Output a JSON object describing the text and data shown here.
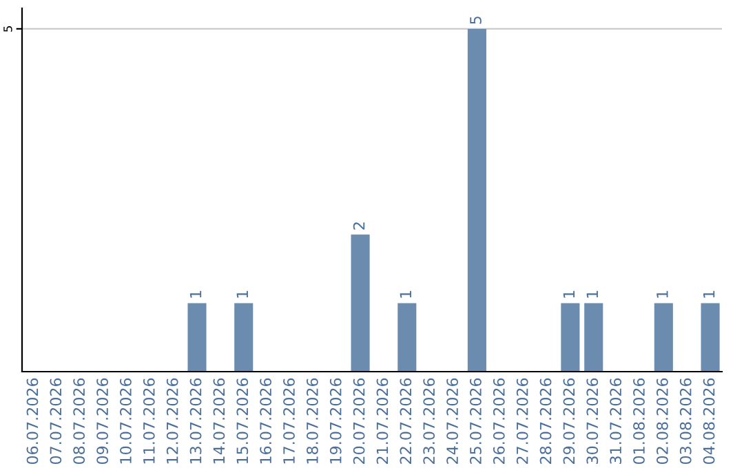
{
  "chart_data": {
    "type": "bar",
    "categories": [
      "06.07.2026",
      "07.07.2026",
      "08.07.2026",
      "09.07.2026",
      "10.07.2026",
      "11.07.2026",
      "12.07.2026",
      "13.07.2026",
      "14.07.2026",
      "15.07.2026",
      "16.07.2026",
      "17.07.2026",
      "18.07.2026",
      "19.07.2026",
      "20.07.2026",
      "21.07.2026",
      "22.07.2026",
      "23.07.2026",
      "24.07.2026",
      "25.07.2026",
      "26.07.2026",
      "27.07.2026",
      "28.07.2026",
      "29.07.2026",
      "30.07.2026",
      "31.07.2026",
      "01.08.2026",
      "02.08.2026",
      "03.08.2026",
      "04.08.2026"
    ],
    "values": [
      null,
      null,
      null,
      null,
      null,
      null,
      null,
      1,
      null,
      1,
      null,
      null,
      null,
      null,
      2,
      null,
      1,
      null,
      null,
      5,
      null,
      null,
      null,
      1,
      1,
      null,
      null,
      1,
      null,
      1
    ],
    "color": "#6b8cae",
    "ylim": [
      0,
      5.3
    ],
    "yticks": [
      5
    ],
    "grid": "y",
    "data_labels": true
  }
}
